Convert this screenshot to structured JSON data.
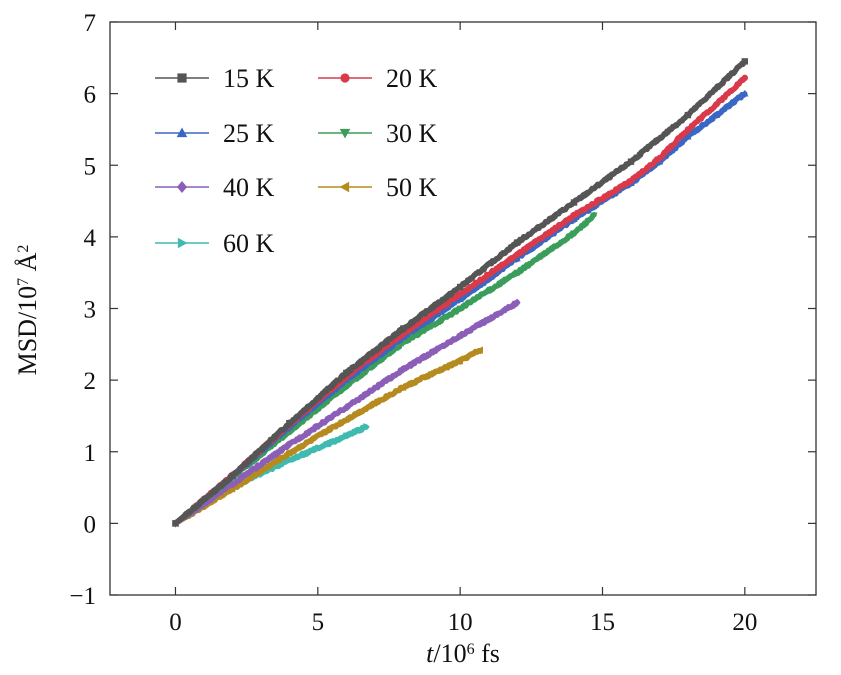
{
  "chart_data": {
    "type": "line",
    "title": "",
    "xlabel": {
      "italic": "t",
      "base": "/10",
      "sup": "6",
      "unit": " fs"
    },
    "ylabel": {
      "base": "MSD/10",
      "sup": "7",
      "unit": " Å",
      "sup2": "2"
    },
    "xlim": [
      -2.3,
      22.5
    ],
    "ylim": [
      -1,
      7
    ],
    "xticks": [
      0,
      5,
      10,
      15,
      20
    ],
    "yticks": [
      -1,
      0,
      1,
      2,
      3,
      4,
      5,
      6,
      7
    ],
    "xtick_labels": [
      "0",
      "5",
      "10",
      "15",
      "20"
    ],
    "ytick_labels": [
      "−1",
      "0",
      "1",
      "2",
      "3",
      "4",
      "5",
      "6",
      "7"
    ],
    "grid": false,
    "legend_position": "top-left",
    "series": [
      {
        "name": "15 K",
        "label": "15 K",
        "color": "#555555",
        "marker": "square",
        "x": [
          0,
          2,
          4,
          6,
          8,
          10,
          12,
          14,
          16,
          18,
          20
        ],
        "y": [
          0,
          0.66,
          1.4,
          2.1,
          2.72,
          3.3,
          3.92,
          4.48,
          5.05,
          5.7,
          6.45
        ]
      },
      {
        "name": "20 K",
        "label": "20 K",
        "color": "#d93a4a",
        "marker": "circle",
        "x": [
          0,
          2,
          4,
          6,
          8,
          10,
          12,
          14,
          16,
          17,
          18,
          19,
          20
        ],
        "y": [
          0,
          0.67,
          1.38,
          2.05,
          2.65,
          3.2,
          3.75,
          4.3,
          4.78,
          5.1,
          5.5,
          5.85,
          6.22
        ]
      },
      {
        "name": "25 K",
        "label": "25 K",
        "color": "#3a66c4",
        "marker": "triangle-up",
        "x": [
          0,
          2,
          4,
          6,
          8,
          10,
          12,
          14,
          16,
          17,
          18,
          19,
          20
        ],
        "y": [
          0,
          0.66,
          1.35,
          2.0,
          2.6,
          3.13,
          3.7,
          4.25,
          4.75,
          5.05,
          5.4,
          5.7,
          6.0
        ]
      },
      {
        "name": "30 K",
        "label": "30 K",
        "color": "#3a9e5a",
        "marker": "triangle-down",
        "x": [
          0,
          2,
          4,
          6,
          8,
          10,
          12,
          14,
          14.7
        ],
        "y": [
          0,
          0.64,
          1.28,
          1.92,
          2.52,
          3.0,
          3.5,
          4.05,
          4.3
        ]
      },
      {
        "name": "40 K",
        "label": "40 K",
        "color": "#8b5fb8",
        "marker": "diamond",
        "x": [
          0,
          2,
          4,
          6,
          8,
          10,
          12
        ],
        "y": [
          0,
          0.55,
          1.1,
          1.62,
          2.15,
          2.62,
          3.08
        ]
      },
      {
        "name": "50 K",
        "label": "50 K",
        "color": "#b58a1e",
        "marker": "triangle-left",
        "x": [
          0,
          2,
          4,
          6,
          8,
          10,
          10.7
        ],
        "y": [
          0,
          0.48,
          0.98,
          1.45,
          1.9,
          2.27,
          2.42
        ]
      },
      {
        "name": "60 K",
        "label": "60 K",
        "color": "#3fbab0",
        "marker": "triangle-right",
        "x": [
          0,
          1,
          2,
          3,
          4,
          5,
          6,
          6.7
        ],
        "y": [
          0,
          0.28,
          0.5,
          0.7,
          0.88,
          1.05,
          1.22,
          1.35
        ]
      }
    ]
  }
}
